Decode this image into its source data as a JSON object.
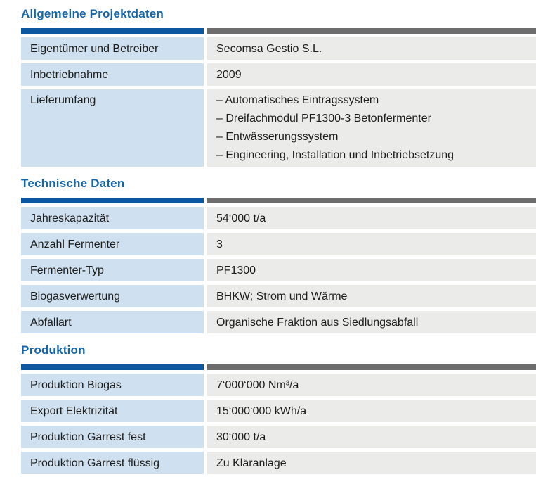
{
  "colors": {
    "background": "#ffffff",
    "text": "#1d1d1b",
    "section_title": "#1565a9",
    "header_bar_label": "#0c57a0",
    "header_bar_value": "#6d6d6d",
    "label_cell_bg": "#cfe0f0",
    "value_cell_bg": "#ebebe9"
  },
  "sections": [
    {
      "title": "Allgemeine Projektdaten",
      "rows": [
        {
          "label": "Eigentümer und Betreiber",
          "value": "Secomsa Gestio S.L."
        },
        {
          "label": "Inbetriebnahme",
          "value": "2009"
        },
        {
          "label": "Lieferumfang",
          "value": "– Automatisches Eintragssystem\n– Dreifachmodul PF1300-3 Betonfermenter\n– Entwässerungssystem\n– Engineering, Installation und Inbetriebsetzung"
        }
      ]
    },
    {
      "title": "Technische Daten",
      "rows": [
        {
          "label": "Jahreskapazität",
          "value": "54‘000 t/a"
        },
        {
          "label": "Anzahl Fermenter",
          "value": "3"
        },
        {
          "label": "Fermenter-Typ",
          "value": "PF1300"
        },
        {
          "label": "Biogasverwertung",
          "value": "BHKW; Strom und Wärme"
        },
        {
          "label": "Abfallart",
          "value": "Organische Fraktion aus Siedlungsabfall"
        }
      ]
    },
    {
      "title": "Produktion",
      "rows": [
        {
          "label": "Produktion Biogas",
          "value": "7‘000‘000 Nm³/a"
        },
        {
          "label": "Export Elektrizität",
          "value": "15‘000‘000 kWh/a"
        },
        {
          "label": "Produktion Gärrest fest",
          "value": "30‘000 t/a"
        },
        {
          "label": "Produktion Gärrest flüssig",
          "value": "Zu Kläranlage"
        }
      ]
    }
  ]
}
